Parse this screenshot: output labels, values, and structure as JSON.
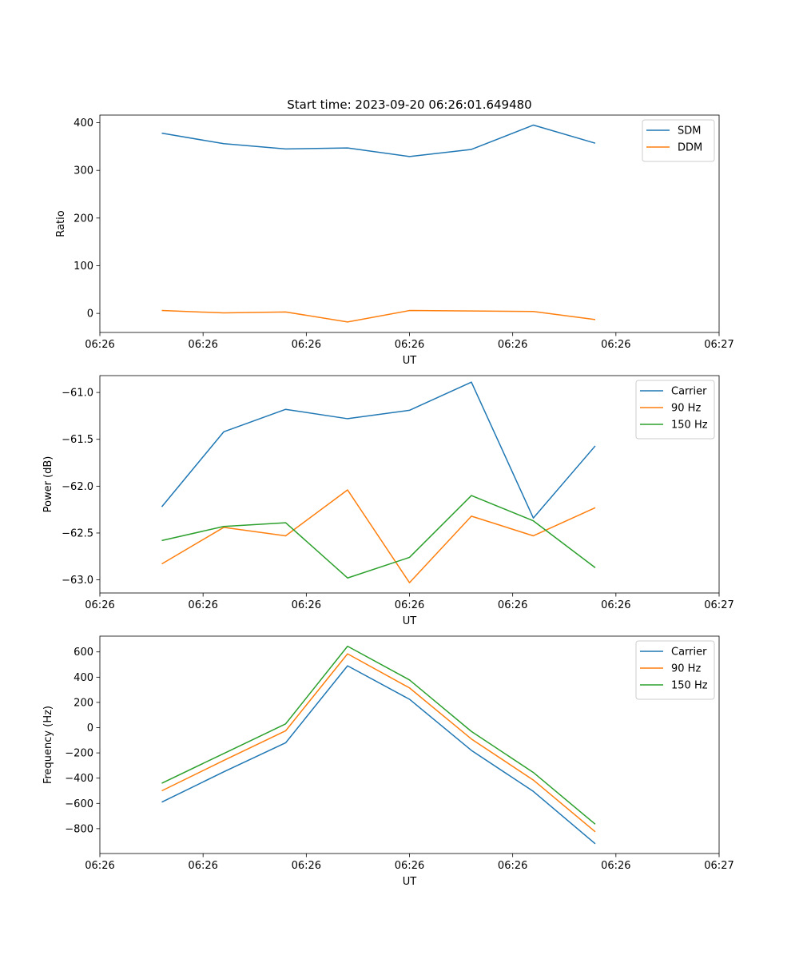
{
  "chart_data": [
    {
      "type": "line",
      "title": "Start time: 2023-09-20 06:26:01.649480",
      "xlabel": "UT",
      "ylabel": "Ratio",
      "x": [
        0.5,
        1.0,
        1.5,
        2.0,
        2.5,
        3.0,
        3.5,
        4.0
      ],
      "xlim": [
        0,
        5
      ],
      "x_ticks": [
        0,
        0.8333,
        1.6667,
        2.5,
        3.3333,
        4.1667,
        5.0
      ],
      "x_tick_labels": [
        "06:26",
        "06:26",
        "06:26",
        "06:26",
        "06:26",
        "06:26",
        "06:27"
      ],
      "ylim": [
        -40,
        416
      ],
      "y_ticks": [
        0,
        100,
        200,
        300,
        400
      ],
      "y_tick_labels": [
        "0",
        "100",
        "200",
        "300",
        "400"
      ],
      "legend": "top-right",
      "grid": false,
      "series": [
        {
          "name": "SDM",
          "color": "#1f77b4",
          "values": [
            378,
            356,
            345,
            347,
            329,
            344,
            395,
            357
          ]
        },
        {
          "name": "DDM",
          "color": "#ff7f0e",
          "values": [
            6,
            1,
            3,
            -18,
            6,
            5,
            4,
            -13
          ]
        }
      ]
    },
    {
      "type": "line",
      "title": "",
      "xlabel": "UT",
      "ylabel": "Power (dB)",
      "x": [
        0.5,
        1.0,
        1.5,
        2.0,
        2.5,
        3.0,
        3.5,
        4.0
      ],
      "xlim": [
        0,
        5
      ],
      "x_ticks": [
        0,
        0.8333,
        1.6667,
        2.5,
        3.3333,
        4.1667,
        5.0
      ],
      "x_tick_labels": [
        "06:26",
        "06:26",
        "06:26",
        "06:26",
        "06:26",
        "06:26",
        "06:27"
      ],
      "ylim": [
        -63.14,
        -60.82
      ],
      "y_ticks": [
        -63.0,
        -62.5,
        -62.0,
        -61.5,
        -61.0
      ],
      "y_tick_labels": [
        "−63.0",
        "−62.5",
        "−62.0",
        "−61.5",
        "−61.0"
      ],
      "legend": "top-right",
      "grid": false,
      "series": [
        {
          "name": "Carrier",
          "color": "#1f77b4",
          "values": [
            -62.22,
            -61.42,
            -61.18,
            -61.28,
            -61.19,
            -60.89,
            -62.34,
            -61.57
          ]
        },
        {
          "name": "90 Hz",
          "color": "#ff7f0e",
          "values": [
            -62.83,
            -62.44,
            -62.53,
            -62.04,
            -63.03,
            -62.32,
            -62.53,
            -62.23
          ]
        },
        {
          "name": "150 Hz",
          "color": "#2ca02c",
          "values": [
            -62.58,
            -62.43,
            -62.39,
            -62.98,
            -62.76,
            -62.1,
            -62.37,
            -62.87
          ]
        }
      ]
    },
    {
      "type": "line",
      "title": "",
      "xlabel": "UT",
      "ylabel": "Frequency (Hz)",
      "x": [
        0.5,
        1.0,
        1.5,
        2.0,
        2.5,
        3.0,
        3.5,
        4.0
      ],
      "xlim": [
        0,
        5
      ],
      "x_ticks": [
        0,
        0.8333,
        1.6667,
        2.5,
        3.3333,
        4.1667,
        5.0
      ],
      "x_tick_labels": [
        "06:26",
        "06:26",
        "06:26",
        "06:26",
        "06:26",
        "06:26",
        "06:27"
      ],
      "ylim": [
        -997,
        725
      ],
      "y_ticks": [
        -800,
        -600,
        -400,
        -200,
        0,
        200,
        400,
        600
      ],
      "y_tick_labels": [
        "−800",
        "−600",
        "−400",
        "−200",
        "0",
        "200",
        "400",
        "600"
      ],
      "legend": "top-right",
      "grid": false,
      "series": [
        {
          "name": "Carrier",
          "color": "#1f77b4",
          "values": [
            -590,
            -350,
            -120,
            490,
            225,
            -180,
            -505,
            -920
          ]
        },
        {
          "name": "90 Hz",
          "color": "#ff7f0e",
          "values": [
            -500,
            -260,
            -25,
            585,
            315,
            -90,
            -415,
            -825
          ]
        },
        {
          "name": "150 Hz",
          "color": "#2ca02c",
          "values": [
            -440,
            -205,
            30,
            645,
            378,
            -30,
            -355,
            -765
          ]
        }
      ]
    }
  ]
}
